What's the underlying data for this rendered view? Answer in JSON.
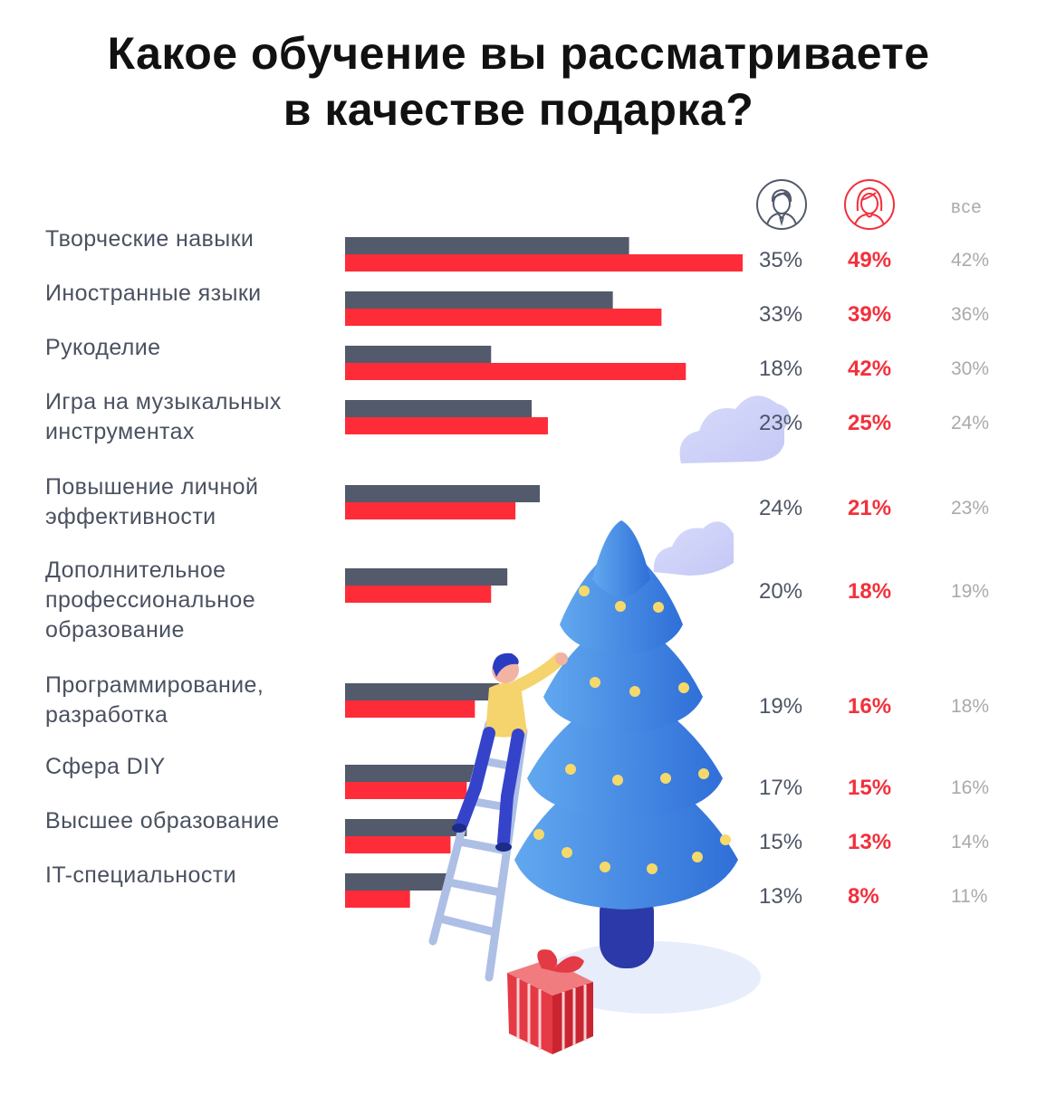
{
  "title_lines": [
    "Какое обучение вы рассматриваете",
    "в качестве подарка?"
  ],
  "legend": {
    "all_label": "все"
  },
  "colors": {
    "men": "#525a6b",
    "women": "#fe2c39",
    "all": "#aaaaaa"
  },
  "chart_data": {
    "type": "bar",
    "orientation": "horizontal",
    "categories": [
      [
        "Творческие навыки"
      ],
      [
        "Иностранные языки"
      ],
      [
        "Рукоделие"
      ],
      [
        "Игра на музыкальных",
        "инструментах"
      ],
      [
        "Повышение личной",
        "эффективности"
      ],
      [
        "Дополнительное",
        "профессиональное",
        "образование"
      ],
      [
        "Программирование,",
        "разработка"
      ],
      [
        "Сфера DIY"
      ],
      [
        "Высшее образование"
      ],
      [
        "IT-специальности"
      ]
    ],
    "series": [
      {
        "values": [
          35,
          33,
          18,
          23,
          24,
          20,
          19,
          17,
          15,
          13
        ],
        "labels": [
          "35%",
          "33%",
          "18%",
          "23%",
          "24%",
          "20%",
          "19%",
          "17%",
          "15%",
          "13%"
        ]
      },
      {
        "values": [
          49,
          39,
          42,
          25,
          21,
          18,
          16,
          15,
          13,
          8
        ],
        "labels": [
          "49%",
          "39%",
          "42%",
          "25%",
          "21%",
          "18%",
          "16%",
          "15%",
          "13%",
          "8%"
        ]
      },
      {
        "name": "все",
        "values": [
          42,
          36,
          30,
          24,
          23,
          19,
          18,
          16,
          14,
          11
        ],
        "labels": [
          "42%",
          "36%",
          "30%",
          "24%",
          "23%",
          "19%",
          "18%",
          "16%",
          "14%",
          "11%"
        ]
      }
    ],
    "xlim": [
      0,
      49
    ],
    "grid": false,
    "legend_position": "top-right"
  }
}
